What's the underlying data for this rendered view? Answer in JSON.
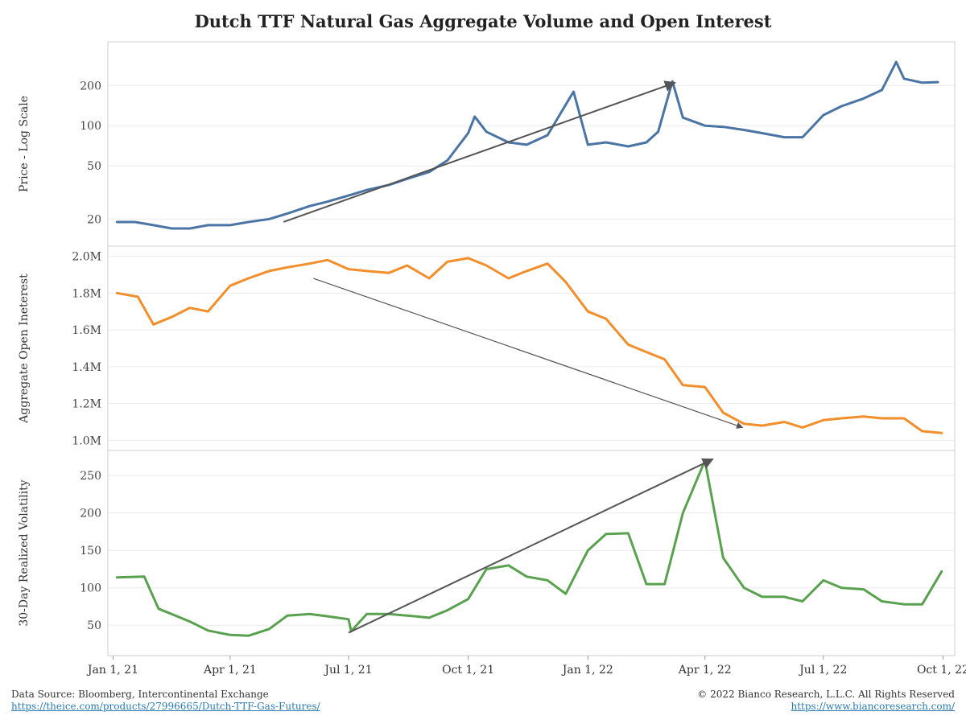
{
  "title": "Dutch TTF Natural Gas Aggregate Volume and Open Interest",
  "footer": {
    "source": "Data Source: Bloomberg, Intercontinental Exchange",
    "source_url": "https://theice.com/products/27996665/Dutch-TTF-Gas-Futures/",
    "copyright": "© 2022 Bianco Research, L.L.C. All Rights Reserved",
    "site_url": "https://www.biancoresearch.com/"
  },
  "colors": {
    "price": "#4a74a4",
    "oi": "#f28e2b",
    "vol": "#59a14f",
    "arrow": "#555555",
    "grid": "#ececec",
    "axis": "#cccccc"
  },
  "chart_data": {
    "type": "line",
    "x_tick_labels": [
      "Jan 1, 21",
      "Apr 1, 21",
      "Jul 1, 21",
      "Oct 1, 21",
      "Jan 1, 22",
      "Apr 1, 22",
      "Jul 1, 22",
      "Oct 1, 22"
    ],
    "x_ticks": [
      "2021-01-01",
      "2021-04-01",
      "2021-07-01",
      "2021-10-01",
      "2022-01-01",
      "2022-04-01",
      "2022-07-01",
      "2022-10-01"
    ],
    "panels": [
      {
        "ylabel": "Price - Log Scale",
        "scale": "log",
        "ylim": [
          14,
          380
        ],
        "y_ticks": [
          20,
          50,
          100,
          200
        ],
        "y_tick_labels": [
          "20",
          "50",
          "100",
          "200"
        ],
        "series": {
          "x": [
            "2021-01-04",
            "2021-01-18",
            "2021-02-01",
            "2021-02-15",
            "2021-03-01",
            "2021-03-15",
            "2021-04-01",
            "2021-04-15",
            "2021-05-01",
            "2021-05-15",
            "2021-06-01",
            "2021-06-15",
            "2021-07-01",
            "2021-07-15",
            "2021-08-01",
            "2021-08-15",
            "2021-09-01",
            "2021-09-15",
            "2021-10-01",
            "2021-10-06",
            "2021-10-15",
            "2021-11-01",
            "2021-11-15",
            "2021-12-01",
            "2021-12-21",
            "2022-01-01",
            "2022-01-15",
            "2022-02-01",
            "2022-02-15",
            "2022-02-24",
            "2022-03-07",
            "2022-03-15",
            "2022-04-01",
            "2022-04-15",
            "2022-05-01",
            "2022-05-15",
            "2022-06-01",
            "2022-06-15",
            "2022-07-01",
            "2022-07-15",
            "2022-08-01",
            "2022-08-15",
            "2022-08-26",
            "2022-09-01",
            "2022-09-15",
            "2022-09-27"
          ],
          "values": [
            19,
            19,
            18,
            17,
            17,
            18,
            18,
            19,
            20,
            22,
            25,
            27,
            30,
            33,
            36,
            40,
            45,
            55,
            88,
            117,
            90,
            75,
            72,
            85,
            180,
            72,
            75,
            70,
            75,
            90,
            215,
            115,
            100,
            98,
            93,
            88,
            82,
            82,
            120,
            140,
            160,
            185,
            300,
            225,
            210,
            212
          ]
        }
      },
      {
        "ylabel": "Aggregate Open Ineterest",
        "scale": "linear",
        "ylim": [
          0.98,
          2.02
        ],
        "y_ticks": [
          1.0,
          1.2,
          1.4,
          1.6,
          1.8,
          2.0
        ],
        "y_tick_labels": [
          "1.0M",
          "1.2M",
          "1.4M",
          "1.6M",
          "1.8M",
          "2.0M"
        ],
        "series": {
          "x": [
            "2021-01-04",
            "2021-01-20",
            "2021-02-01",
            "2021-02-15",
            "2021-03-01",
            "2021-03-15",
            "2021-04-01",
            "2021-04-15",
            "2021-05-01",
            "2021-05-15",
            "2021-06-01",
            "2021-06-15",
            "2021-07-01",
            "2021-07-15",
            "2021-08-01",
            "2021-08-15",
            "2021-09-01",
            "2021-09-15",
            "2021-10-01",
            "2021-10-15",
            "2021-11-01",
            "2021-11-15",
            "2021-12-01",
            "2021-12-15",
            "2022-01-01",
            "2022-01-15",
            "2022-02-01",
            "2022-02-15",
            "2022-03-01",
            "2022-03-15",
            "2022-04-01",
            "2022-04-15",
            "2022-05-01",
            "2022-05-15",
            "2022-06-01",
            "2022-06-15",
            "2022-07-01",
            "2022-07-15",
            "2022-08-01",
            "2022-08-15",
            "2022-09-01",
            "2022-09-15",
            "2022-09-30"
          ],
          "values": [
            1.8,
            1.78,
            1.63,
            1.67,
            1.72,
            1.7,
            1.84,
            1.88,
            1.92,
            1.94,
            1.96,
            1.98,
            1.93,
            1.92,
            1.91,
            1.95,
            1.88,
            1.97,
            1.99,
            1.95,
            1.88,
            1.92,
            1.96,
            1.86,
            1.7,
            1.66,
            1.52,
            1.48,
            1.44,
            1.3,
            1.29,
            1.15,
            1.09,
            1.08,
            1.1,
            1.07,
            1.11,
            1.12,
            1.13,
            1.12,
            1.12,
            1.05,
            1.04
          ]
        }
      },
      {
        "ylabel": "30-Day Realized Volatility",
        "scale": "linear",
        "ylim": [
          18,
          275
        ],
        "y_ticks": [
          50,
          100,
          150,
          200,
          250
        ],
        "y_tick_labels": [
          "50",
          "100",
          "150",
          "200",
          "250"
        ],
        "series": {
          "x": [
            "2021-01-04",
            "2021-01-25",
            "2021-02-05",
            "2021-02-15",
            "2021-03-01",
            "2021-03-15",
            "2021-04-01",
            "2021-04-15",
            "2021-05-01",
            "2021-05-15",
            "2021-06-01",
            "2021-06-15",
            "2021-07-01",
            "2021-07-03",
            "2021-07-15",
            "2021-08-01",
            "2021-08-15",
            "2021-09-01",
            "2021-09-15",
            "2021-10-01",
            "2021-10-15",
            "2021-11-01",
            "2021-11-15",
            "2021-12-01",
            "2021-12-15",
            "2022-01-01",
            "2022-01-15",
            "2022-02-01",
            "2022-02-15",
            "2022-03-01",
            "2022-03-15",
            "2022-04-01",
            "2022-04-08",
            "2022-04-15",
            "2022-05-01",
            "2022-05-15",
            "2022-06-01",
            "2022-06-15",
            "2022-07-01",
            "2022-07-15",
            "2022-08-01",
            "2022-08-15",
            "2022-09-01",
            "2022-09-15",
            "2022-09-30"
          ],
          "values": [
            114,
            115,
            72,
            65,
            55,
            43,
            37,
            36,
            45,
            63,
            65,
            62,
            58,
            42,
            65,
            65,
            63,
            60,
            70,
            85,
            125,
            130,
            115,
            110,
            92,
            150,
            172,
            173,
            105,
            105,
            200,
            270,
            205,
            140,
            100,
            88,
            88,
            82,
            110,
            100,
            98,
            82,
            78,
            78,
            122
          ]
        }
      }
    ],
    "annotations": [
      {
        "panel": 0,
        "from": {
          "x": "2021-05-12",
          "y": 19
        },
        "to": {
          "x": "2022-03-09",
          "y": 210
        }
      },
      {
        "panel": 1,
        "from": {
          "x": "2021-06-04",
          "y": 1.88
        },
        "to": {
          "x": "2022-04-30",
          "y": 1.07
        }
      },
      {
        "panel": 2,
        "from": {
          "x": "2021-07-01",
          "y": 40
        },
        "to": {
          "x": "2022-04-07",
          "y": 272
        }
      }
    ]
  }
}
